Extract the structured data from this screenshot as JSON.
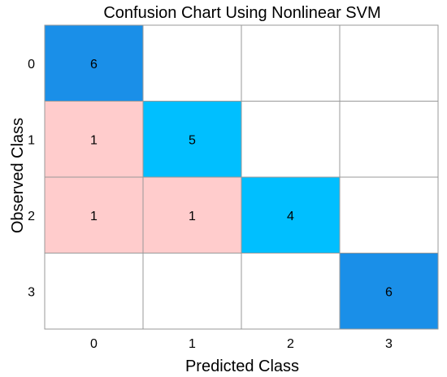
{
  "chart_data": {
    "type": "heatmap",
    "title": "Confusion Chart Using Nonlinear SVM",
    "xlabel": "Predicted Class",
    "ylabel": "Observed Class",
    "row_labels": [
      "0",
      "1",
      "2",
      "3"
    ],
    "col_labels": [
      "0",
      "1",
      "2",
      "3"
    ],
    "matrix": [
      [
        6,
        0,
        0,
        0
      ],
      [
        1,
        5,
        0,
        0
      ],
      [
        1,
        1,
        4,
        0
      ],
      [
        0,
        0,
        0,
        6
      ]
    ],
    "grid": true,
    "colors": {
      "diagonal_max": "#1a8fe8",
      "diagonal_low": "#00bfff",
      "off_diagonal": "#ffcccc",
      "empty": "#ffffff",
      "gridline": "#999999"
    }
  }
}
